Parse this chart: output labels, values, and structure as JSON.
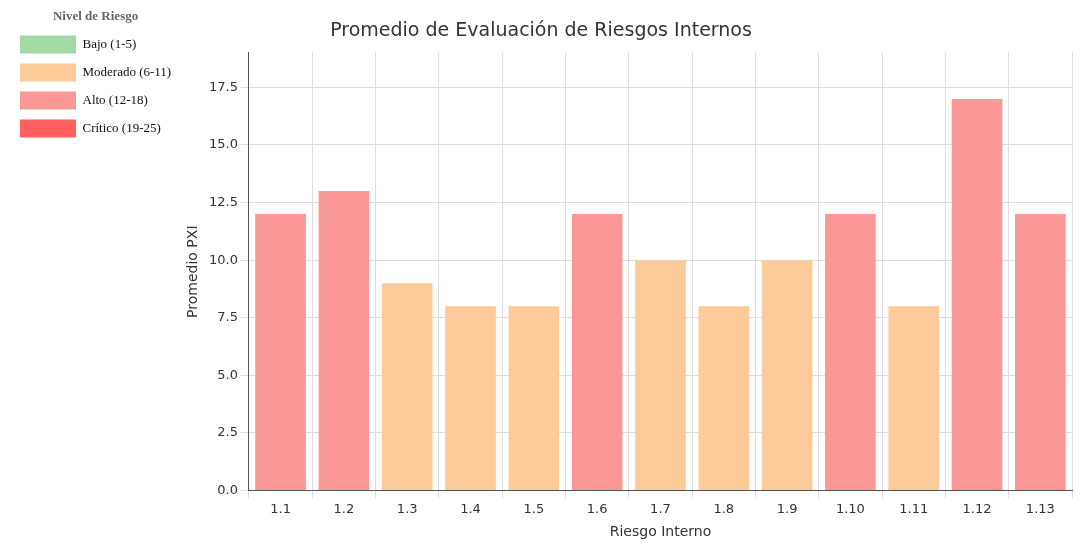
{
  "chart_data": {
    "type": "bar",
    "title": "Promedio de Evaluación de Riesgos Internos",
    "xlabel": "Riesgo Interno",
    "ylabel": "Promedio PXI",
    "legend_title": "Nivel de Riesgo",
    "legend": "top left",
    "grid": true,
    "stacked": true,
    "categories": [
      "1.1",
      "1.2",
      "1.3",
      "1.4",
      "1.5",
      "1.6",
      "1.7",
      "1.8",
      "1.9",
      "1.10",
      "1.11",
      "1.12",
      "1.13"
    ],
    "series": [
      {
        "name": "Bajo (1-5)",
        "color": "#a3d9a5",
        "values": [
          null,
          null,
          null,
          null,
          null,
          null,
          null,
          null,
          null,
          null,
          null,
          null,
          null
        ]
      },
      {
        "name": "Moderado (6-11)",
        "color": "#fdca99",
        "values": [
          null,
          null,
          9,
          8,
          8,
          null,
          10,
          8,
          10,
          null,
          8,
          null,
          null
        ]
      },
      {
        "name": "Alto (12-18)",
        "color": "#fa9898",
        "values": [
          12,
          13,
          null,
          null,
          null,
          12,
          null,
          null,
          null,
          12,
          null,
          17,
          12
        ]
      },
      {
        "name": "Crítico (19-25)",
        "color": "#ff5f5f",
        "values": [
          null,
          null,
          null,
          null,
          null,
          null,
          null,
          null,
          null,
          null,
          null,
          null,
          null
        ]
      }
    ],
    "ylim": [
      0,
      19
    ],
    "yticks": [
      {
        "value": 0,
        "label": "0.0"
      },
      2.5,
      {
        "value": 5,
        "label": "5.0"
      },
      7.5,
      {
        "value": 10,
        "label": "10.0"
      },
      12.5,
      {
        "value": 15,
        "label": "15.0"
      },
      17.5
    ]
  }
}
